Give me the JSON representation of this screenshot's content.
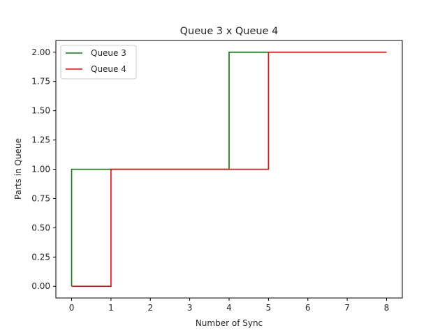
{
  "chart_data": {
    "type": "line",
    "step": "post",
    "title": "Queue 3 x Queue 4",
    "xlabel": "Number of Sync",
    "ylabel": "Parts in Queue",
    "xlim": [
      -0.4,
      8.4
    ],
    "ylim": [
      -0.1,
      2.1
    ],
    "xticks": [
      0,
      1,
      2,
      3,
      4,
      5,
      6,
      7,
      8
    ],
    "xtick_labels": [
      "0",
      "1",
      "2",
      "3",
      "4",
      "5",
      "6",
      "7",
      "8"
    ],
    "yticks": [
      0,
      0.25,
      0.5,
      0.75,
      1.0,
      1.25,
      1.5,
      1.75,
      2.0
    ],
    "ytick_labels": [
      "0.00",
      "0.25",
      "0.50",
      "0.75",
      "1.00",
      "1.25",
      "1.50",
      "1.75",
      "2.00"
    ],
    "grid": false,
    "legend_position": "top-left",
    "series": [
      {
        "name": "Queue 3",
        "color": "#008000",
        "x": [
          0,
          0,
          4,
          4,
          5
        ],
        "y": [
          0,
          1,
          1,
          2,
          2
        ]
      },
      {
        "name": "Queue 4",
        "color": "#ff0000",
        "x": [
          0,
          1,
          1,
          5,
          5,
          8
        ],
        "y": [
          0,
          0,
          1,
          1,
          2,
          2
        ]
      }
    ]
  }
}
